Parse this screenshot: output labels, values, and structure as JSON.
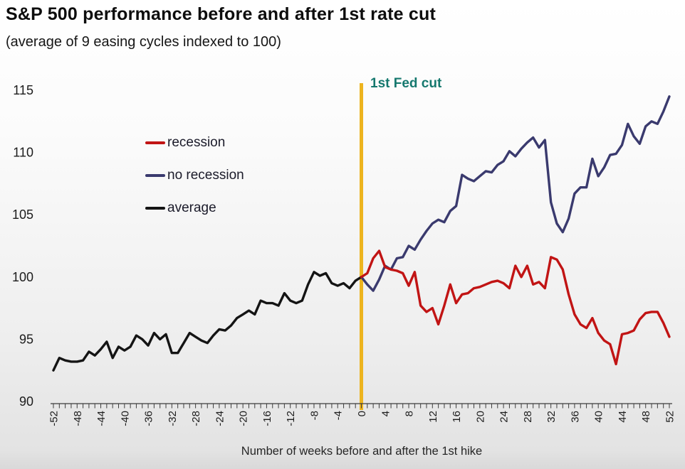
{
  "header": {
    "title": "S&P 500 performance before and after 1st rate cut",
    "subtitle": "(average of 9 easing cycles indexed to 100)"
  },
  "legend": {
    "items": [
      {
        "label": "recession",
        "color": "#c11414"
      },
      {
        "label": "no recession",
        "color": "#3a3a6e"
      },
      {
        "label": "average",
        "color": "#141414"
      }
    ]
  },
  "chart_data": {
    "type": "line",
    "title": "S&P 500 performance before and after 1st rate cut",
    "subtitle": "(average of 9 easing cycles indexed to 100)",
    "xlabel": "Number of weeks before and after the 1st hike",
    "ylabel": "",
    "xlim": [
      -52,
      52
    ],
    "ylim": [
      90,
      115
    ],
    "yticks": [
      90,
      95,
      100,
      105,
      110,
      115
    ],
    "xtick_label_step": 4,
    "xtick_minor_step": 1,
    "grid": false,
    "legend_position": "upper-left-inside",
    "vline": {
      "x": 0,
      "label": "1st Fed cut",
      "color": "#edb41f",
      "label_color": "#15786e"
    },
    "series": [
      {
        "name": "average",
        "color": "#141414",
        "x_start": -52,
        "values": [
          92.5,
          93.5,
          93.3,
          93.2,
          93.2,
          93.3,
          94.0,
          93.7,
          94.2,
          94.8,
          93.5,
          94.4,
          94.1,
          94.4,
          95.3,
          95.0,
          94.5,
          95.5,
          95.0,
          95.4,
          93.9,
          93.9,
          94.7,
          95.5,
          95.2,
          94.9,
          94.7,
          95.3,
          95.8,
          95.7,
          96.1,
          96.7,
          97.0,
          97.3,
          97.0,
          98.1,
          97.9,
          97.9,
          97.7,
          98.7,
          98.1,
          97.9,
          98.1,
          99.4,
          100.4,
          100.1,
          100.3,
          99.5,
          99.3,
          99.5,
          99.1,
          99.7,
          100.0
        ]
      },
      {
        "name": "no recession",
        "color": "#3a3a6e",
        "x_start": 0,
        "values": [
          100.0,
          99.4,
          98.9,
          99.8,
          100.9,
          100.6,
          101.5,
          101.6,
          102.5,
          102.2,
          103.0,
          103.7,
          104.3,
          104.6,
          104.4,
          105.3,
          105.7,
          108.2,
          107.9,
          107.7,
          108.1,
          108.5,
          108.4,
          109.0,
          109.3,
          110.1,
          109.7,
          110.3,
          110.8,
          111.2,
          110.4,
          111.0,
          106.0,
          104.3,
          103.6,
          104.7,
          106.7,
          107.2,
          107.2,
          109.5,
          108.1,
          108.8,
          109.8,
          109.9,
          110.6,
          112.3,
          111.3,
          110.7,
          112.1,
          112.5,
          112.3,
          113.3,
          114.5
        ]
      },
      {
        "name": "recession",
        "color": "#c11414",
        "x_start": 0,
        "values": [
          100.0,
          100.3,
          101.5,
          102.1,
          100.8,
          100.6,
          100.5,
          100.3,
          99.3,
          100.4,
          97.7,
          97.2,
          97.5,
          96.2,
          97.7,
          99.4,
          97.9,
          98.6,
          98.7,
          99.1,
          99.2,
          99.4,
          99.6,
          99.7,
          99.5,
          99.1,
          100.9,
          100.0,
          100.9,
          99.4,
          99.6,
          99.1,
          101.6,
          101.4,
          100.6,
          98.6,
          97.0,
          96.2,
          95.9,
          96.7,
          95.5,
          94.9,
          94.6,
          93.0,
          95.4,
          95.5,
          95.7,
          96.6,
          97.1,
          97.2,
          97.2,
          96.3,
          95.2
        ]
      }
    ]
  }
}
